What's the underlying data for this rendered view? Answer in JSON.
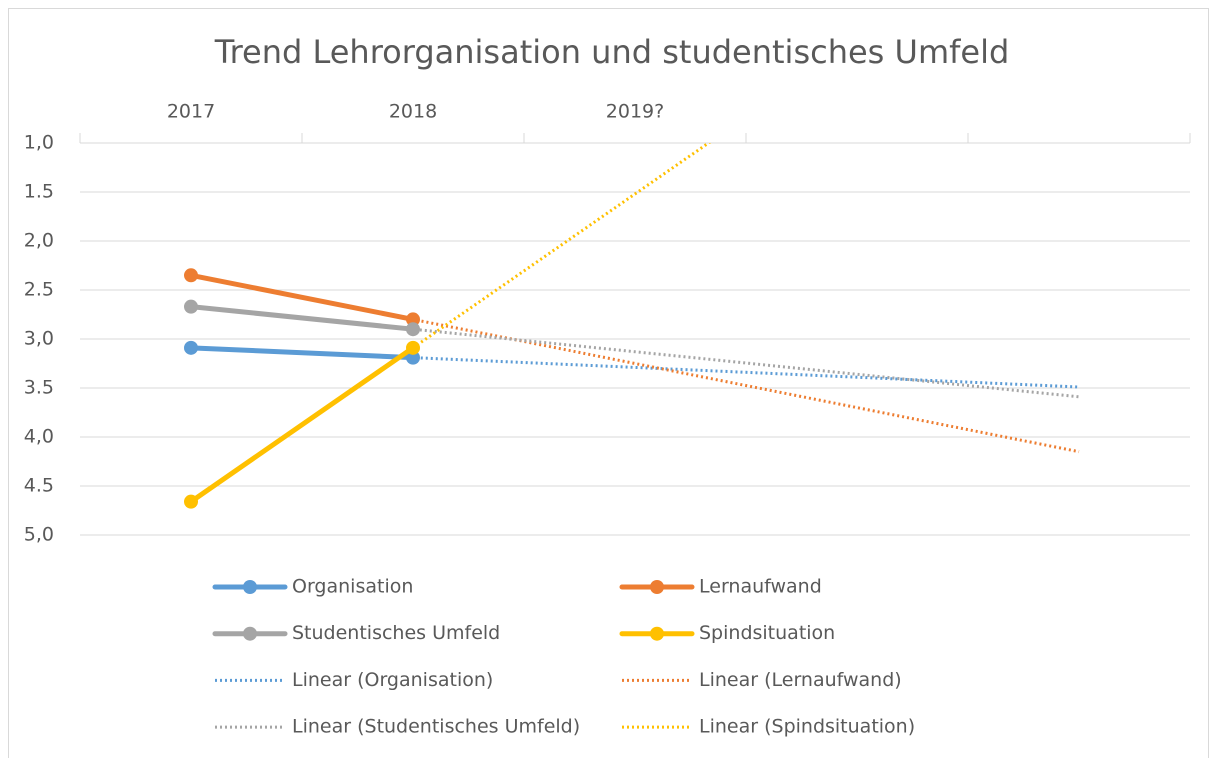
{
  "chart_data": {
    "type": "line",
    "title": "Trend Lehrorganisation und studentisches Umfeld",
    "categories": [
      "2017",
      "2018",
      "2019?",
      null,
      null
    ],
    "y_reversed": true,
    "ylim": [
      1,
      5
    ],
    "yticks": [
      {
        "value": 1,
        "label": "1,0"
      },
      1.5,
      {
        "value": 2,
        "label": "2,0"
      },
      2.5,
      {
        "value": 3,
        "label": "3,0"
      },
      3.5,
      {
        "value": 4,
        "label": "4,0"
      },
      4.5,
      {
        "value": 5,
        "label": "5,0"
      }
    ],
    "grid": true,
    "legend": "bottom",
    "series": [
      {
        "name": "Organisation",
        "color": "#5b9bd5",
        "values": [
          3.09,
          3.19,
          null,
          null,
          null
        ],
        "trend_name": "Linear (Organisation)"
      },
      {
        "name": "Lernaufwand",
        "color": "#ed7d31",
        "values": [
          2.35,
          2.8,
          null,
          null,
          null
        ],
        "trend_name": "Linear (Lernaufwand)"
      },
      {
        "name": "Studentisches Umfeld",
        "color": "#a5a5a5",
        "values": [
          2.67,
          2.9,
          null,
          null,
          null
        ],
        "trend_name": "Linear (Studentisches Umfeld)"
      },
      {
        "name": "Spindsituation",
        "color": "#ffc000",
        "values": [
          4.66,
          3.09,
          null,
          null,
          null
        ],
        "trend_name": "Linear (Spindsituation)"
      }
    ]
  }
}
